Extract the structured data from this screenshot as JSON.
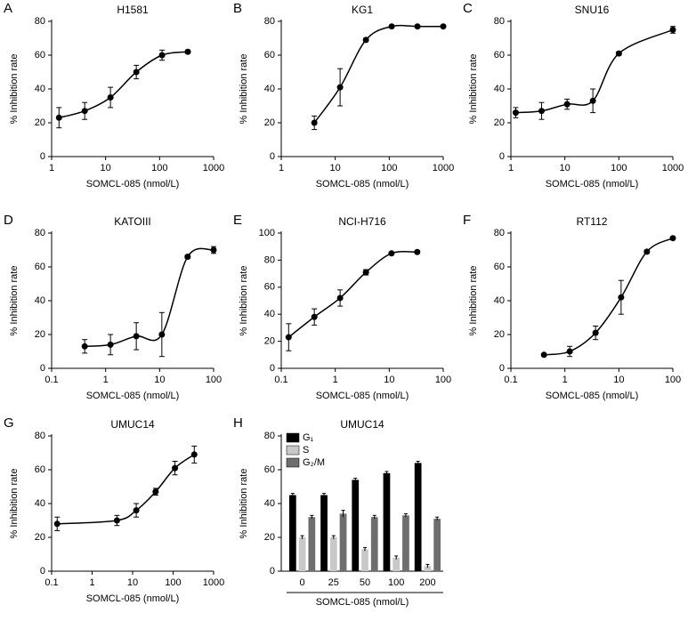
{
  "chart_data": [
    {
      "label": "A",
      "type": "scatter",
      "title": "H1581",
      "xlabel": "SOMCL-085 (nmol/L)",
      "ylabel": "% Inhibition rate",
      "xscale": "log",
      "color": "#000000",
      "x": [
        1.37,
        4.1,
        12.3,
        37,
        111,
        333
      ],
      "values": [
        23,
        27,
        35,
        50,
        60,
        62
      ],
      "errors": [
        6,
        5,
        6,
        4,
        3,
        1
      ],
      "xlim": [
        1,
        1000
      ],
      "xticks": [
        1,
        10,
        100,
        1000
      ],
      "ylim": [
        0,
        80
      ],
      "yticks": [
        0,
        20,
        40,
        60,
        80
      ]
    },
    {
      "label": "B",
      "type": "scatter",
      "title": "KG1",
      "xlabel": "SOMCL-085 (nmol/L)",
      "ylabel": "% Inhibition rate",
      "xscale": "log",
      "color": "#000000",
      "x": [
        4.1,
        12.3,
        37,
        111,
        333,
        1000
      ],
      "values": [
        20,
        41,
        69,
        77,
        77,
        77
      ],
      "errors": [
        4,
        11,
        1,
        0.5,
        0.5,
        0.5
      ],
      "xlim": [
        1,
        1000
      ],
      "xticks": [
        1,
        10,
        100,
        1000
      ],
      "ylim": [
        0,
        80
      ],
      "yticks": [
        0,
        20,
        40,
        60,
        80
      ]
    },
    {
      "label": "C",
      "type": "scatter",
      "title": "SNU16",
      "xlabel": "SOMCL-085 (nmol/L)",
      "ylabel": "% Inhibition rate",
      "xscale": "log",
      "color": "#000000",
      "x": [
        1.23,
        3.7,
        11,
        33,
        100,
        1000
      ],
      "values": [
        26,
        27,
        31,
        33,
        61,
        75
      ],
      "errors": [
        3,
        5,
        3,
        7,
        1,
        2
      ],
      "xlim": [
        1,
        1000
      ],
      "xticks": [
        1,
        10,
        100,
        1000
      ],
      "ylim": [
        0,
        80
      ],
      "yticks": [
        0,
        20,
        40,
        60,
        80
      ]
    },
    {
      "label": "D",
      "type": "scatter",
      "title": "KATOIII",
      "xlabel": "SOMCL-085 (nmol/L)",
      "ylabel": "% Inhibition rate",
      "xscale": "log",
      "color": "#000000",
      "x": [
        0.41,
        1.23,
        3.7,
        11,
        33,
        100
      ],
      "values": [
        13,
        14,
        19,
        20,
        66,
        70
      ],
      "errors": [
        4,
        6,
        8,
        13,
        1,
        2
      ],
      "xlim": [
        0.1,
        100
      ],
      "xticks": [
        0.1,
        1,
        10,
        100
      ],
      "ylim": [
        0,
        80
      ],
      "yticks": [
        0,
        20,
        40,
        60,
        80
      ]
    },
    {
      "label": "E",
      "type": "scatter",
      "title": "NCI-H716",
      "xlabel": "SOMCL-085 (nmol/L)",
      "ylabel": "% Inhibition rate",
      "xscale": "log",
      "color": "#000000",
      "x": [
        0.137,
        0.41,
        1.23,
        3.7,
        11,
        33
      ],
      "values": [
        23,
        38,
        52,
        71,
        85,
        86
      ],
      "errors": [
        10,
        6,
        6,
        2,
        1,
        1
      ],
      "xlim": [
        0.1,
        100
      ],
      "xticks": [
        0.1,
        1,
        10,
        100
      ],
      "ylim": [
        0,
        100
      ],
      "yticks": [
        0,
        20,
        40,
        60,
        80,
        100
      ]
    },
    {
      "label": "F",
      "type": "scatter",
      "title": "RT112",
      "xlabel": "SOMCL-085 (nmol/L)",
      "ylabel": "% Inhibition rate",
      "xscale": "log",
      "color": "#000000",
      "x": [
        0.41,
        1.23,
        3.7,
        11,
        33,
        100
      ],
      "values": [
        8,
        10,
        21,
        42,
        69,
        77
      ],
      "errors": [
        0.5,
        3,
        4,
        10,
        1,
        0.5
      ],
      "xlim": [
        0.1,
        100
      ],
      "xticks": [
        0.1,
        1,
        10,
        100
      ],
      "ylim": [
        0,
        80
      ],
      "yticks": [
        0,
        20,
        40,
        60,
        80
      ]
    },
    {
      "label": "G",
      "type": "scatter",
      "title": "UMUC14",
      "xlabel": "SOMCL-085 (nmol/L)",
      "ylabel": "% Inhibition rate",
      "xscale": "log",
      "color": "#000000",
      "x": [
        0.137,
        4.1,
        12.3,
        37,
        111,
        333
      ],
      "values": [
        28,
        30,
        36,
        47,
        61,
        69
      ],
      "errors": [
        4,
        3,
        4,
        2,
        4,
        5
      ],
      "xlim": [
        0.1,
        1000
      ],
      "xticks": [
        0.1,
        1,
        10,
        100,
        1000
      ],
      "ylim": [
        0,
        80
      ],
      "yticks": [
        0,
        20,
        40,
        60,
        80
      ]
    },
    {
      "label": "H",
      "type": "bar",
      "title": "UMUC14",
      "xlabel": "SOMCL-085 (nmol/L)",
      "ylabel": "% Inhibition rate",
      "categories": [
        "0",
        "25",
        "50",
        "100",
        "200"
      ],
      "series": [
        {
          "name": "G₁",
          "color": "#000000",
          "values": [
            45,
            45,
            54,
            58,
            64
          ],
          "errors": [
            1,
            1,
            1,
            1,
            1
          ]
        },
        {
          "name": "S",
          "color": "#c8c8c8",
          "values": [
            20,
            20,
            13,
            8,
            3
          ],
          "errors": [
            1,
            1,
            1,
            1,
            1
          ]
        },
        {
          "name": "G₂/M",
          "color": "#6e6e6e",
          "values": [
            32,
            34,
            32,
            33,
            31
          ],
          "errors": [
            1,
            2,
            1,
            1,
            1
          ]
        }
      ],
      "ylim": [
        0,
        80
      ],
      "yticks": [
        0,
        20,
        40,
        60,
        80
      ]
    }
  ]
}
